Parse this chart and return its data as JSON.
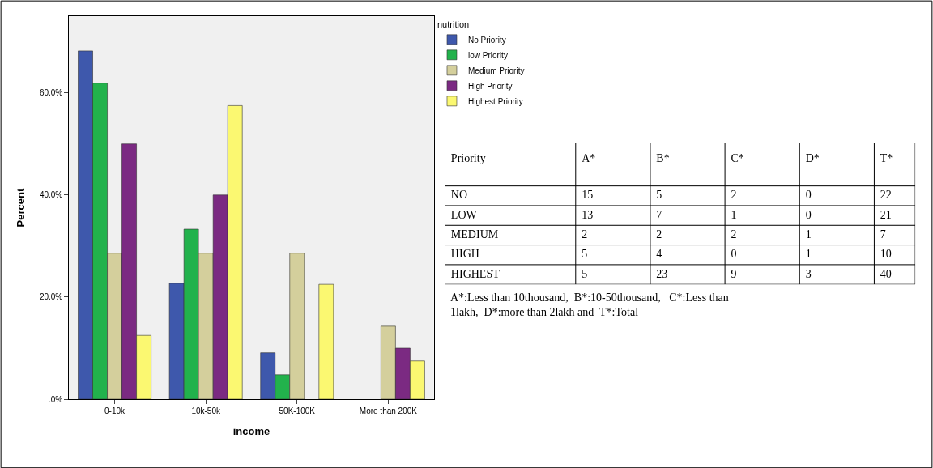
{
  "chart_data": [
    {
      "type": "bar",
      "xlabel": "income",
      "ylabel": "Percent",
      "legend_title": "nutrition",
      "legend": "top right",
      "grid": false,
      "categories": [
        "0-10k",
        "10k-50k",
        "50K-100K",
        "More than 200K"
      ],
      "ylim": [
        0,
        75
      ],
      "yticks": [
        {
          "value": 0,
          "label": ".0%"
        },
        {
          "value": 20,
          "label": "20.0%"
        },
        {
          "value": 40,
          "label": "40.0%"
        },
        {
          "value": 60,
          "label": "60.0%"
        }
      ],
      "series": [
        {
          "name": "No Priority",
          "color": "#3e58ac",
          "values": [
            68.2,
            22.7,
            9.1,
            0
          ]
        },
        {
          "name": "low Priority",
          "color": "#22b24c",
          "values": [
            61.9,
            33.3,
            4.8,
            0
          ]
        },
        {
          "name": "Medium Priority",
          "color": "#d4cf9c",
          "values": [
            28.6,
            28.6,
            28.6,
            14.3
          ]
        },
        {
          "name": "High Priority",
          "color": "#7b2a82",
          "values": [
            50,
            40,
            0,
            10
          ]
        },
        {
          "name": "Highest Priority",
          "color": "#fbf871",
          "values": [
            12.5,
            57.5,
            22.5,
            7.5
          ]
        }
      ]
    },
    {
      "type": "heatmap",
      "ylabel": "Priority",
      "data_labels": true,
      "categories": [
        "A*",
        "B*",
        "C*",
        "D*",
        "T*"
      ],
      "y_categories": [
        "NO",
        "LOW",
        "MEDIUM",
        "HIGH",
        "HIGHEST"
      ],
      "cells": [
        [
          15,
          5,
          2,
          0,
          22
        ],
        [
          13,
          7,
          1,
          0,
          21
        ],
        [
          2,
          2,
          2,
          1,
          7
        ],
        [
          5,
          4,
          0,
          1,
          10
        ],
        [
          5,
          23,
          9,
          3,
          40
        ]
      ],
      "annotations": [
        "A*:Less than 10thousand,  B*:10-50thousand,   C*:Less than 1lakh,  D*:more than 2lakh and  T*:Total"
      ]
    }
  ]
}
